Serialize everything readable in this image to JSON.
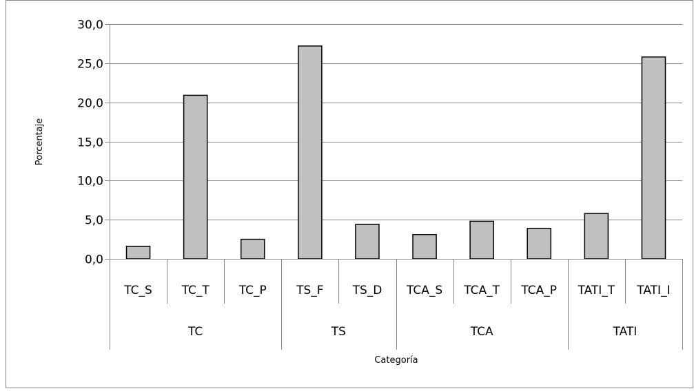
{
  "chart_data": {
    "type": "bar",
    "title": "",
    "xlabel": "Categoría",
    "ylabel": "Porcentaje",
    "ylim": [
      0,
      30
    ],
    "ytick_step": 5,
    "ytick_labels": [
      "0,0",
      "5,0",
      "10,0",
      "15,0",
      "20,0",
      "25,0",
      "30,0"
    ],
    "grid": true,
    "legend": "none",
    "categories": [
      "TC_S",
      "TC_T",
      "TC_P",
      "TS_F",
      "TS_D",
      "TCA_S",
      "TCA_T",
      "TCA_P",
      "TATI_T",
      "TATI_I"
    ],
    "values": [
      1.6,
      20.9,
      2.5,
      27.2,
      4.4,
      3.1,
      4.8,
      3.9,
      5.8,
      25.8
    ],
    "groups": [
      {
        "label": "TC",
        "members": [
          "TC_S",
          "TC_T",
          "TC_P"
        ]
      },
      {
        "label": "TS",
        "members": [
          "TS_F",
          "TS_D"
        ]
      },
      {
        "label": "TCA",
        "members": [
          "TCA_S",
          "TCA_T",
          "TCA_P"
        ]
      },
      {
        "label": "TATI",
        "members": [
          "TATI_T",
          "TATI_I"
        ]
      }
    ],
    "colors": {
      "bar_fill": "#c0c0c0",
      "bar_stroke": "#000000",
      "grid": "#868686",
      "axis": "#868686",
      "frame": "#868686"
    }
  }
}
